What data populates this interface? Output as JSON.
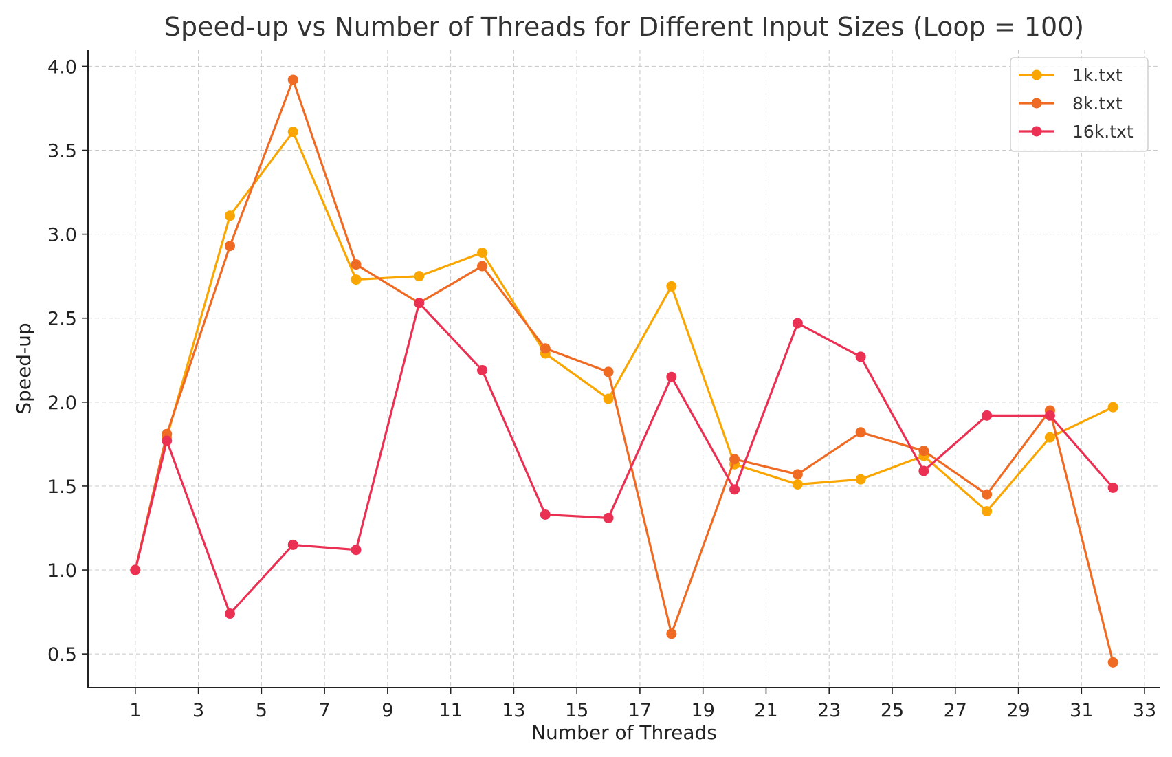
{
  "chart_data": {
    "type": "line",
    "title": "Speed-up vs Number of Threads for Different Input Sizes (Loop = 100)",
    "xlabel": "Number of Threads",
    "ylabel": "Speed-up",
    "xlim": [
      -0.5,
      33.5
    ],
    "ylim": [
      0.3,
      4.1
    ],
    "xticks": [
      1,
      3,
      5,
      7,
      9,
      11,
      13,
      15,
      17,
      19,
      21,
      23,
      25,
      27,
      29,
      31,
      33
    ],
    "yticks": [
      0.5,
      1.0,
      1.5,
      2.0,
      2.5,
      3.0,
      3.5,
      4.0
    ],
    "ytick_labels": [
      "0.5",
      "1.0",
      "1.5",
      "2.0",
      "2.5",
      "3.0",
      "3.5",
      "4.0"
    ],
    "grid": true,
    "legend_position": "top-right",
    "x": [
      1,
      2,
      4,
      6,
      8,
      10,
      12,
      14,
      16,
      18,
      20,
      22,
      24,
      26,
      28,
      30,
      32
    ],
    "series": [
      {
        "name": "1k.txt",
        "color": "#F9A602",
        "values": [
          1.0,
          1.79,
          3.11,
          3.61,
          2.73,
          2.75,
          2.89,
          2.29,
          2.02,
          2.69,
          1.63,
          1.51,
          1.54,
          1.68,
          1.35,
          1.79,
          1.97
        ]
      },
      {
        "name": "8k.txt",
        "color": "#EF6A23",
        "values": [
          1.0,
          1.81,
          2.93,
          3.92,
          2.82,
          2.59,
          2.81,
          2.32,
          2.18,
          0.62,
          1.66,
          1.57,
          1.82,
          1.71,
          1.45,
          1.95,
          0.45
        ]
      },
      {
        "name": "16k.txt",
        "color": "#EB3153",
        "values": [
          1.0,
          1.77,
          0.74,
          1.15,
          1.12,
          2.59,
          2.19,
          1.33,
          1.31,
          2.15,
          1.48,
          2.47,
          2.27,
          1.59,
          1.92,
          1.92,
          1.49
        ]
      }
    ]
  }
}
